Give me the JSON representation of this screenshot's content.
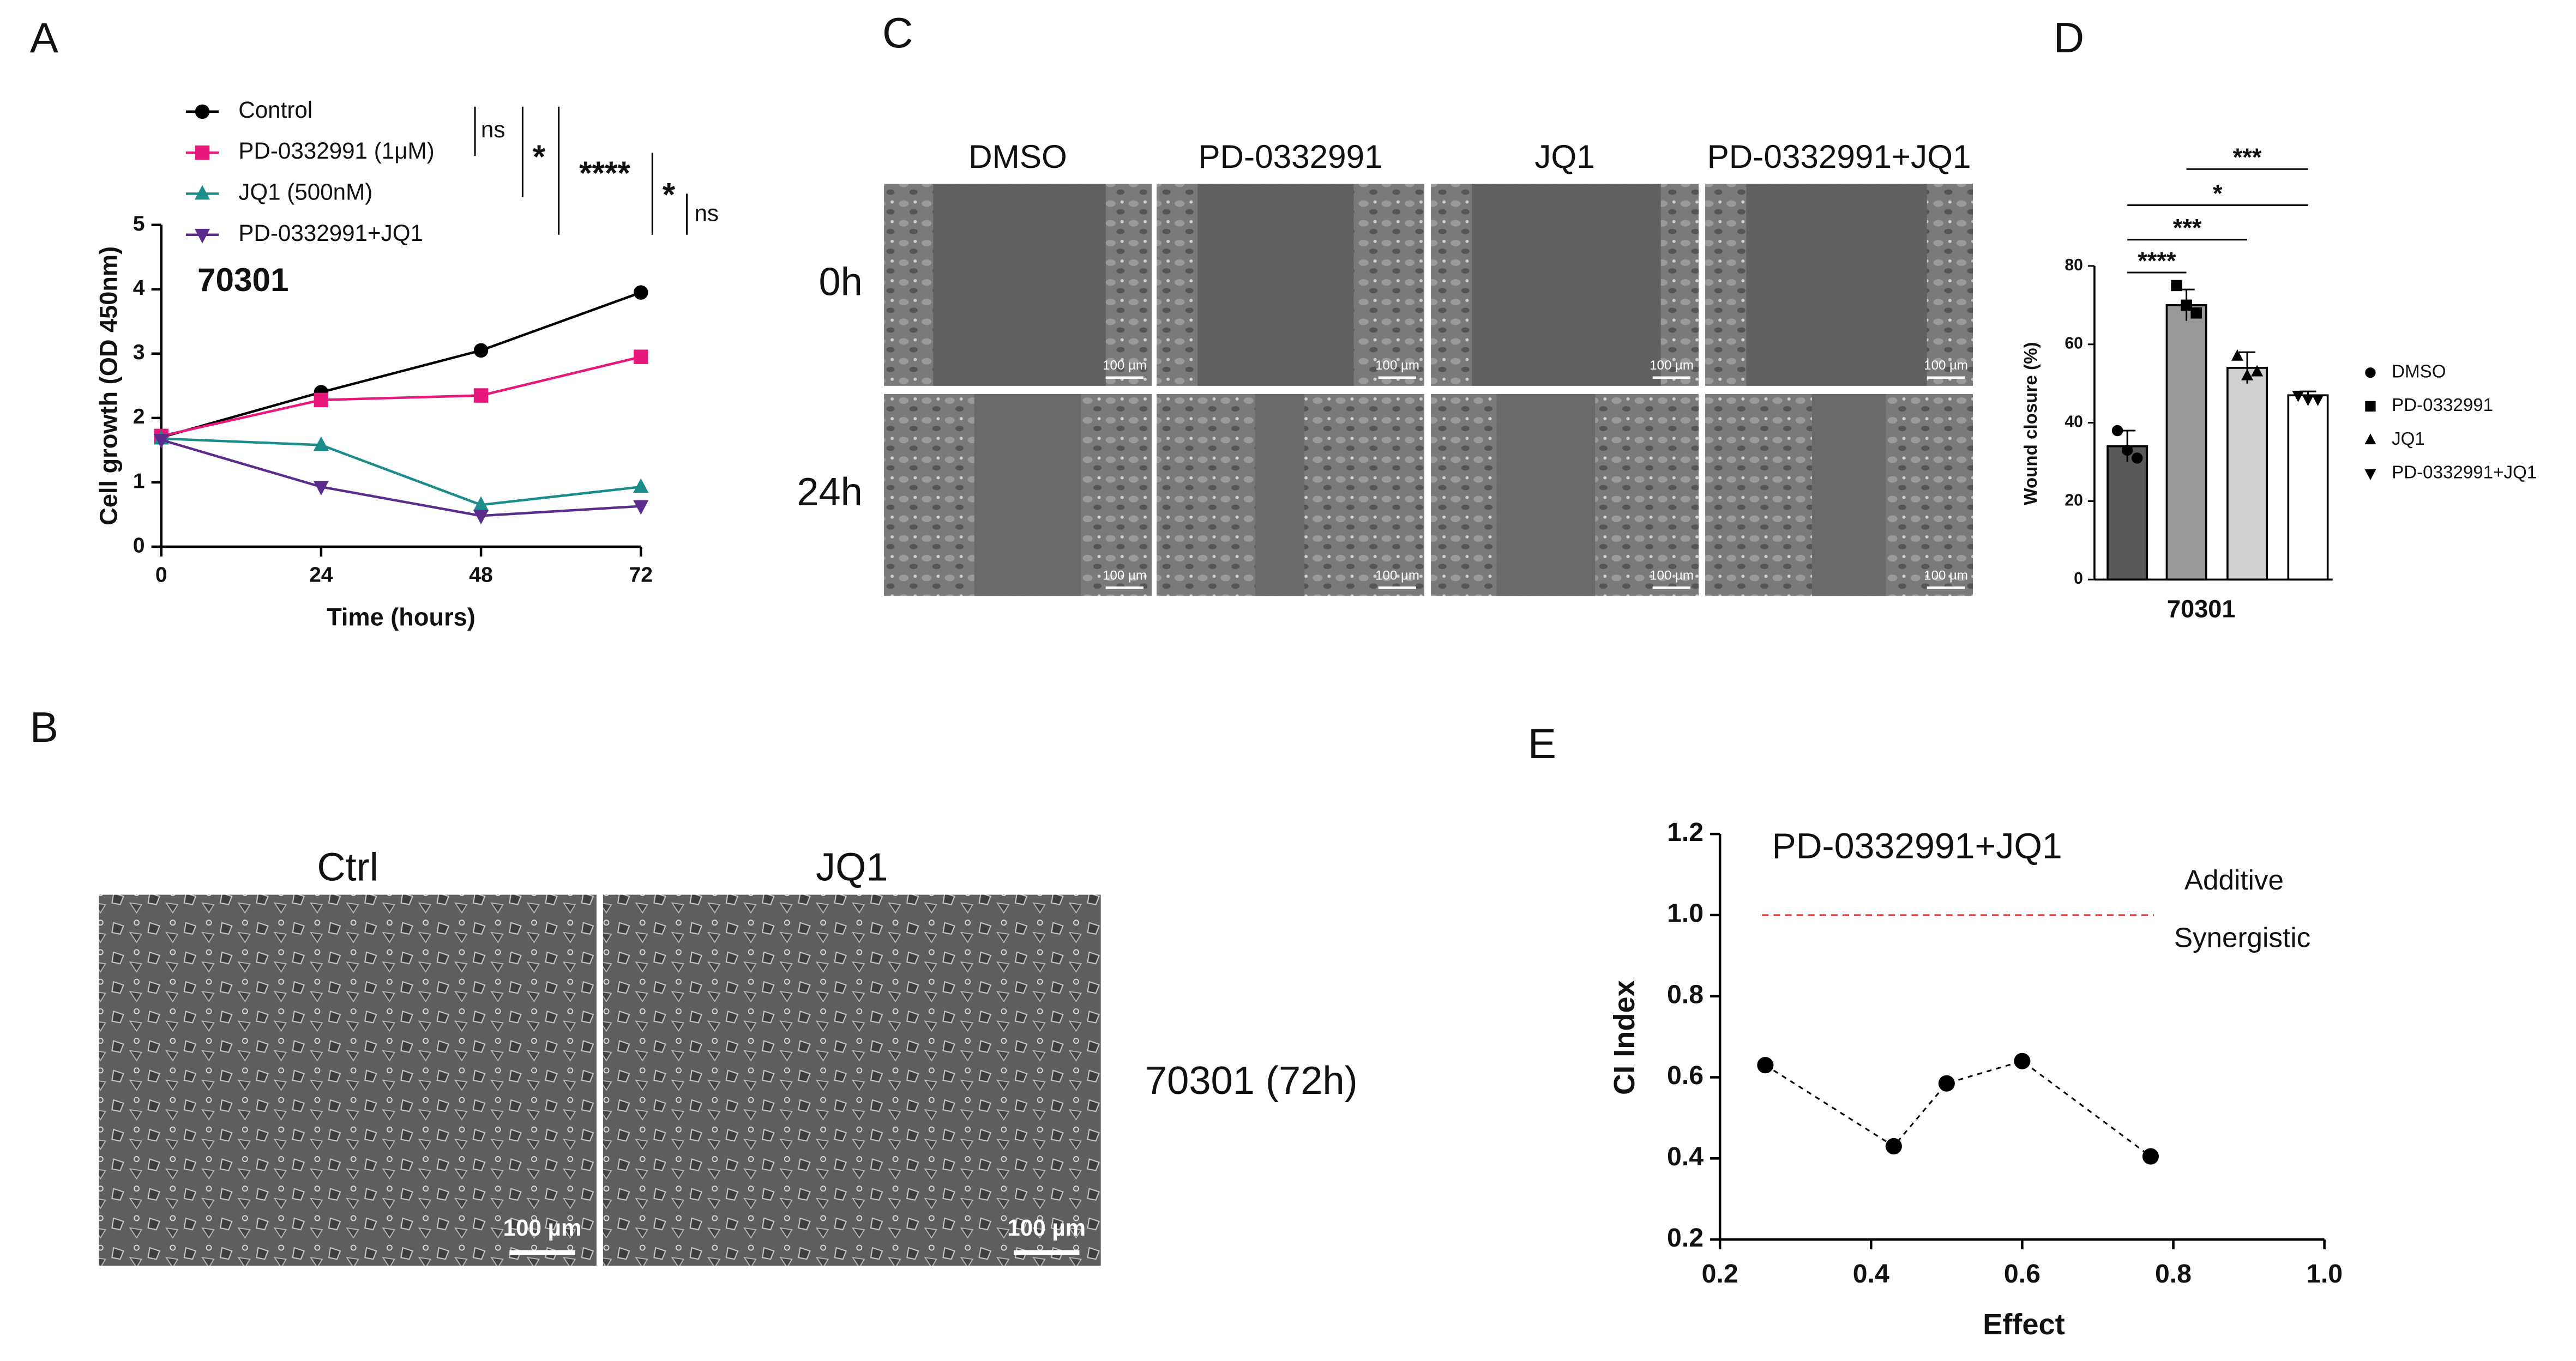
{
  "chart_data": [
    {
      "type": "line",
      "annotation": "70301",
      "xlabel": "Time (hours)",
      "ylabel": "Cell growth (OD 450nm)",
      "x": [
        0,
        24,
        48,
        72
      ],
      "series": [
        {
          "name": "Control",
          "color": "#000000",
          "marker": "circle",
          "values": [
            1.7,
            2.4,
            3.05,
            3.95
          ]
        },
        {
          "name": "PD-0332991 (1μM)",
          "color": "#e6197a",
          "marker": "square",
          "values": [
            1.72,
            2.28,
            2.35,
            2.95
          ]
        },
        {
          "name": "JQ1 (500nM)",
          "color": "#1a8c8c",
          "marker": "triangle",
          "values": [
            1.68,
            1.58,
            0.65,
            0.93
          ]
        },
        {
          "name": "PD-0332991+JQ1",
          "color": "#5b2c8c",
          "marker": "triangle-down",
          "values": [
            1.66,
            0.93,
            0.48,
            0.63
          ]
        }
      ],
      "significance": [
        "ns",
        "*",
        "****",
        "*",
        "ns"
      ],
      "xlim": [
        0,
        72
      ],
      "xticks": [
        0,
        24,
        48,
        72
      ],
      "ylim": [
        0,
        5
      ],
      "yticks": [
        0,
        1,
        2,
        3,
        4,
        5
      ]
    },
    {
      "type": "bar",
      "xlabel": "70301",
      "ylabel": "Wound closure (%)",
      "categories": [
        "DMSO",
        "PD-0332991",
        "JQ1",
        "PD-0332991+JQ1"
      ],
      "values": [
        34,
        70,
        54,
        47
      ],
      "errors": [
        4,
        4,
        4,
        1
      ],
      "points": [
        [
          38,
          33,
          31
        ],
        [
          75,
          70,
          68
        ],
        [
          57,
          52,
          53
        ],
        [
          47,
          46,
          46
        ]
      ],
      "colors": [
        "#595959",
        "#999999",
        "#d0d0d0",
        "#ffffff"
      ],
      "markers": [
        "circle",
        "square",
        "triangle",
        "triangle-down"
      ],
      "significance": [
        "***",
        "*",
        "***",
        "****"
      ],
      "ylim": [
        0,
        80
      ],
      "yticks": [
        0,
        20,
        40,
        60,
        80
      ]
    },
    {
      "type": "scatter",
      "title": "PD-0332991+JQ1",
      "xlabel": "Effect",
      "ylabel": "CI Index",
      "x": [
        0.26,
        0.43,
        0.5,
        0.6,
        0.77
      ],
      "values": [
        0.63,
        0.43,
        0.585,
        0.64,
        0.405
      ],
      "color": "#000000",
      "reference_line": {
        "value": 1,
        "color": "#e03030"
      },
      "annotations": [
        "Additive",
        "Synergistic"
      ],
      "xlim": [
        0.2,
        1
      ],
      "xticks": [
        0.2,
        0.4,
        0.6,
        0.8,
        {
          "value": 1,
          "label": "1.0"
        }
      ],
      "ylim": [
        0.2,
        1.2
      ],
      "yticks": [
        0.2,
        0.4,
        0.6,
        0.8,
        {
          "value": 1,
          "label": "1.0"
        },
        1.2
      ]
    }
  ],
  "figure": {
    "panel_labels": [
      "A",
      "B",
      "C",
      "D",
      "E"
    ],
    "panel_B": {
      "columns": [
        "Ctrl",
        "JQ1"
      ],
      "caption": "70301 (72h)"
    },
    "panel_C": {
      "columns": [
        "DMSO",
        "PD-0332991",
        "JQ1",
        "PD-0332991+JQ1"
      ],
      "rows": [
        "0h",
        "24h"
      ]
    },
    "scale_bar": "100 µm"
  }
}
